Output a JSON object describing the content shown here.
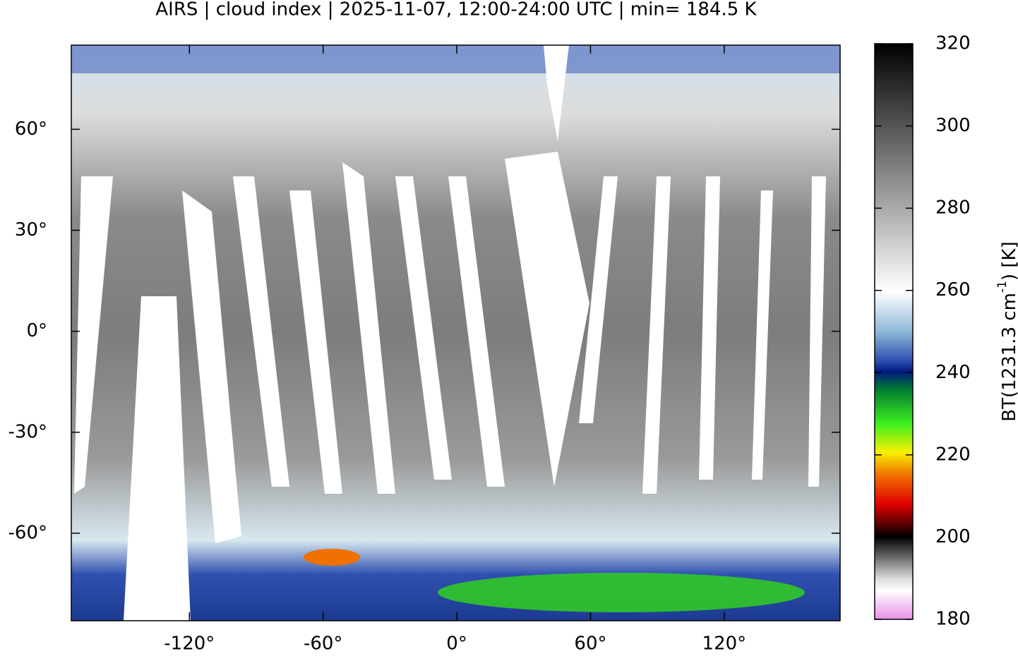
{
  "chart_data": {
    "type": "map",
    "title": "AIRS | cloud index | 2025-11-07, 12:00-24:00 UTC | min= 184.5 K",
    "xlim": [
      -173,
      172
    ],
    "ylim": [
      -86,
      85
    ],
    "xticks": [
      {
        "value": -120,
        "label": "-120°"
      },
      {
        "value": -60,
        "label": "-60°"
      },
      {
        "value": 0,
        "label": "0°"
      },
      {
        "value": 60,
        "label": "60°"
      },
      {
        "value": 120,
        "label": "120°"
      }
    ],
    "yticks": [
      {
        "value": 60,
        "label": "60°"
      },
      {
        "value": 30,
        "label": "30°"
      },
      {
        "value": 0,
        "label": "0°"
      },
      {
        "value": -30,
        "label": "-30°"
      },
      {
        "value": -60,
        "label": "-60°"
      }
    ],
    "colorbar": {
      "label_parts": [
        "BT(1231.3 cm",
        "-1",
        ") [K]"
      ],
      "lim": [
        180,
        320
      ],
      "ticks": [
        180,
        200,
        220,
        240,
        260,
        280,
        300,
        320
      ]
    }
  }
}
